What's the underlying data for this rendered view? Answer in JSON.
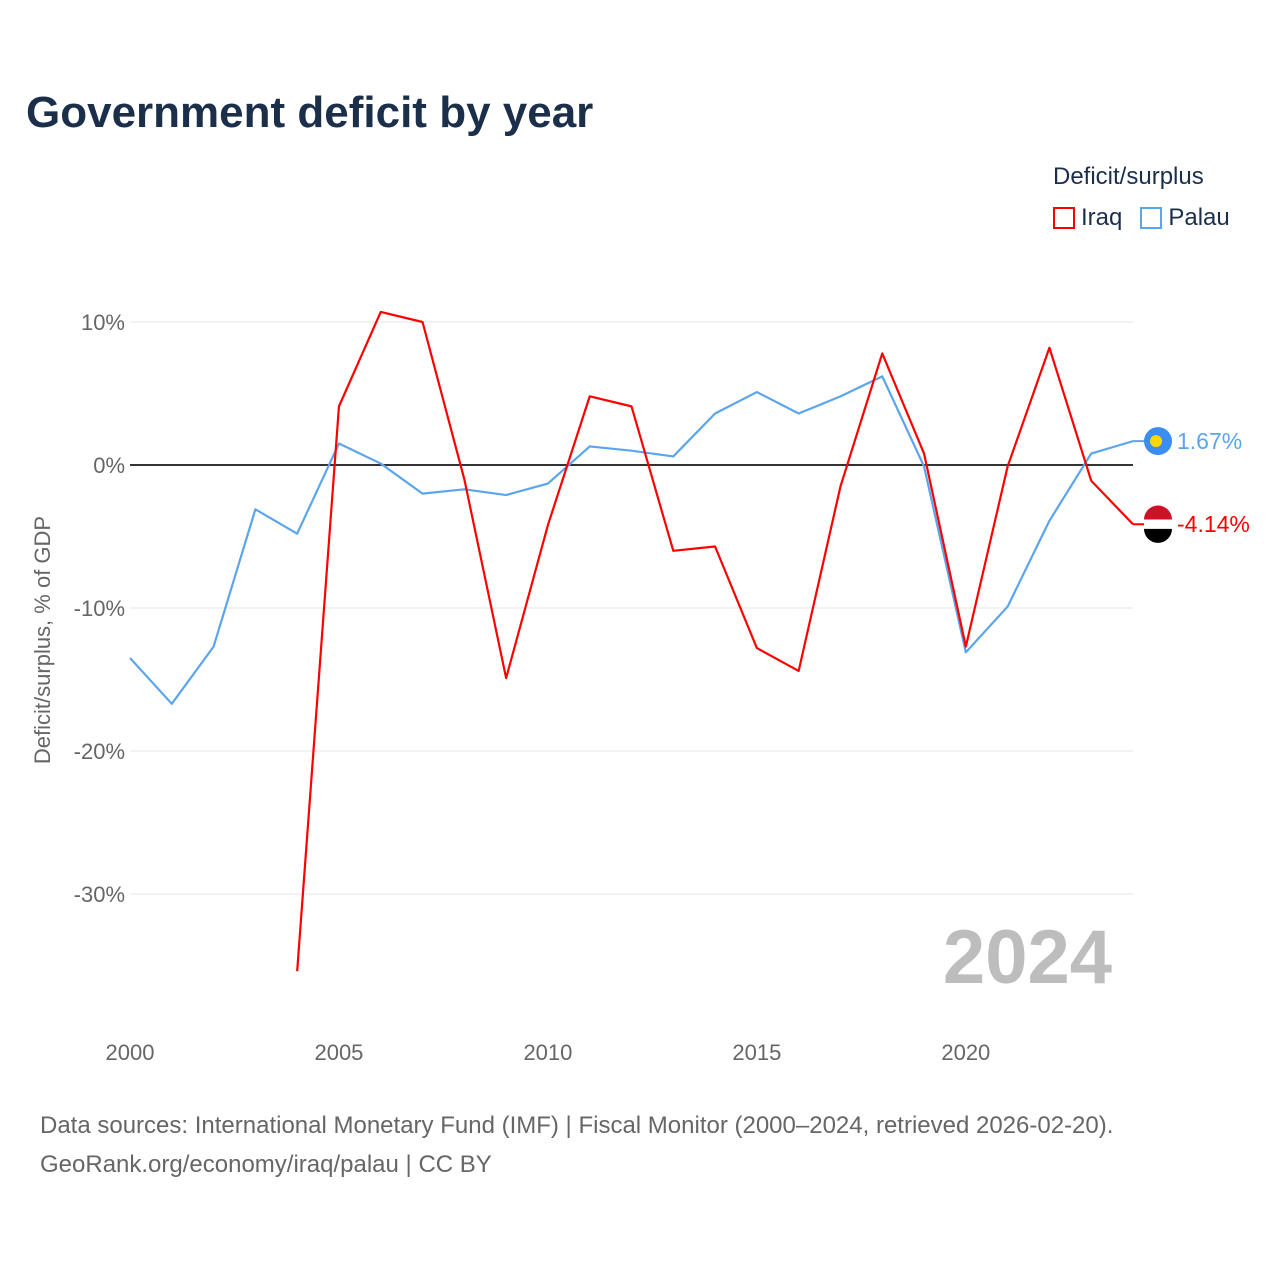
{
  "title": "Government deficit by year",
  "legend": {
    "title": "Deficit/surplus",
    "items": [
      {
        "label": "Iraq",
        "color": "#ff0000"
      },
      {
        "label": "Palau",
        "color": "#5aa5ec"
      }
    ]
  },
  "source_line1": "Data sources: International Monetary Fund (IMF) | Fiscal Monitor (2000–2024, retrieved 2026-02-20).",
  "source_line2": "GeoRank.org/economy/iraq/palau | CC BY",
  "chart_data": {
    "type": "line",
    "title": "Government deficit by year",
    "xlabel": "",
    "ylabel": "Deficit/surplus, % of GDP",
    "xlim": [
      2000,
      2024
    ],
    "ylim": [
      -37,
      12
    ],
    "x_ticks": [
      2000,
      2005,
      2010,
      2015,
      2020
    ],
    "x_tick_labels": [
      "2000",
      "2005",
      "2010",
      "2015",
      "2020"
    ],
    "y_ticks": [
      10,
      0,
      -10,
      -20,
      -30
    ],
    "y_tick_labels": [
      "10%",
      "0%",
      "-10%",
      "-20%",
      "-30%"
    ],
    "grid": true,
    "legend_position": "top-right",
    "year_watermark": "2024",
    "series": [
      {
        "name": "Iraq",
        "color": "#ff0000",
        "end_label": "-4.14%",
        "x": [
          2004,
          2005,
          2006,
          2007,
          2008,
          2009,
          2010,
          2011,
          2012,
          2013,
          2014,
          2015,
          2016,
          2017,
          2018,
          2019,
          2020,
          2021,
          2022,
          2023,
          2024
        ],
        "values": [
          -35.4,
          4.1,
          10.7,
          10.0,
          -1.0,
          -14.9,
          -4.2,
          4.8,
          4.1,
          -6.0,
          -5.7,
          -12.8,
          -14.4,
          -1.5,
          7.8,
          0.8,
          -12.7,
          -0.1,
          8.2,
          -1.1,
          -4.14
        ]
      },
      {
        "name": "Palau",
        "color": "#5aa5ec",
        "end_label": "1.67%",
        "x": [
          2000,
          2001,
          2002,
          2003,
          2004,
          2005,
          2006,
          2007,
          2008,
          2009,
          2010,
          2011,
          2012,
          2013,
          2014,
          2015,
          2016,
          2017,
          2018,
          2019,
          2020,
          2021,
          2022,
          2023,
          2024
        ],
        "values": [
          -13.5,
          -16.7,
          -12.7,
          -3.1,
          -4.8,
          1.5,
          0.1,
          -2.0,
          -1.7,
          -2.1,
          -1.3,
          1.3,
          1.0,
          0.6,
          3.6,
          5.1,
          3.6,
          4.8,
          6.2,
          -0.1,
          -13.1,
          -9.9,
          -3.9,
          0.8,
          1.67
        ]
      }
    ]
  }
}
